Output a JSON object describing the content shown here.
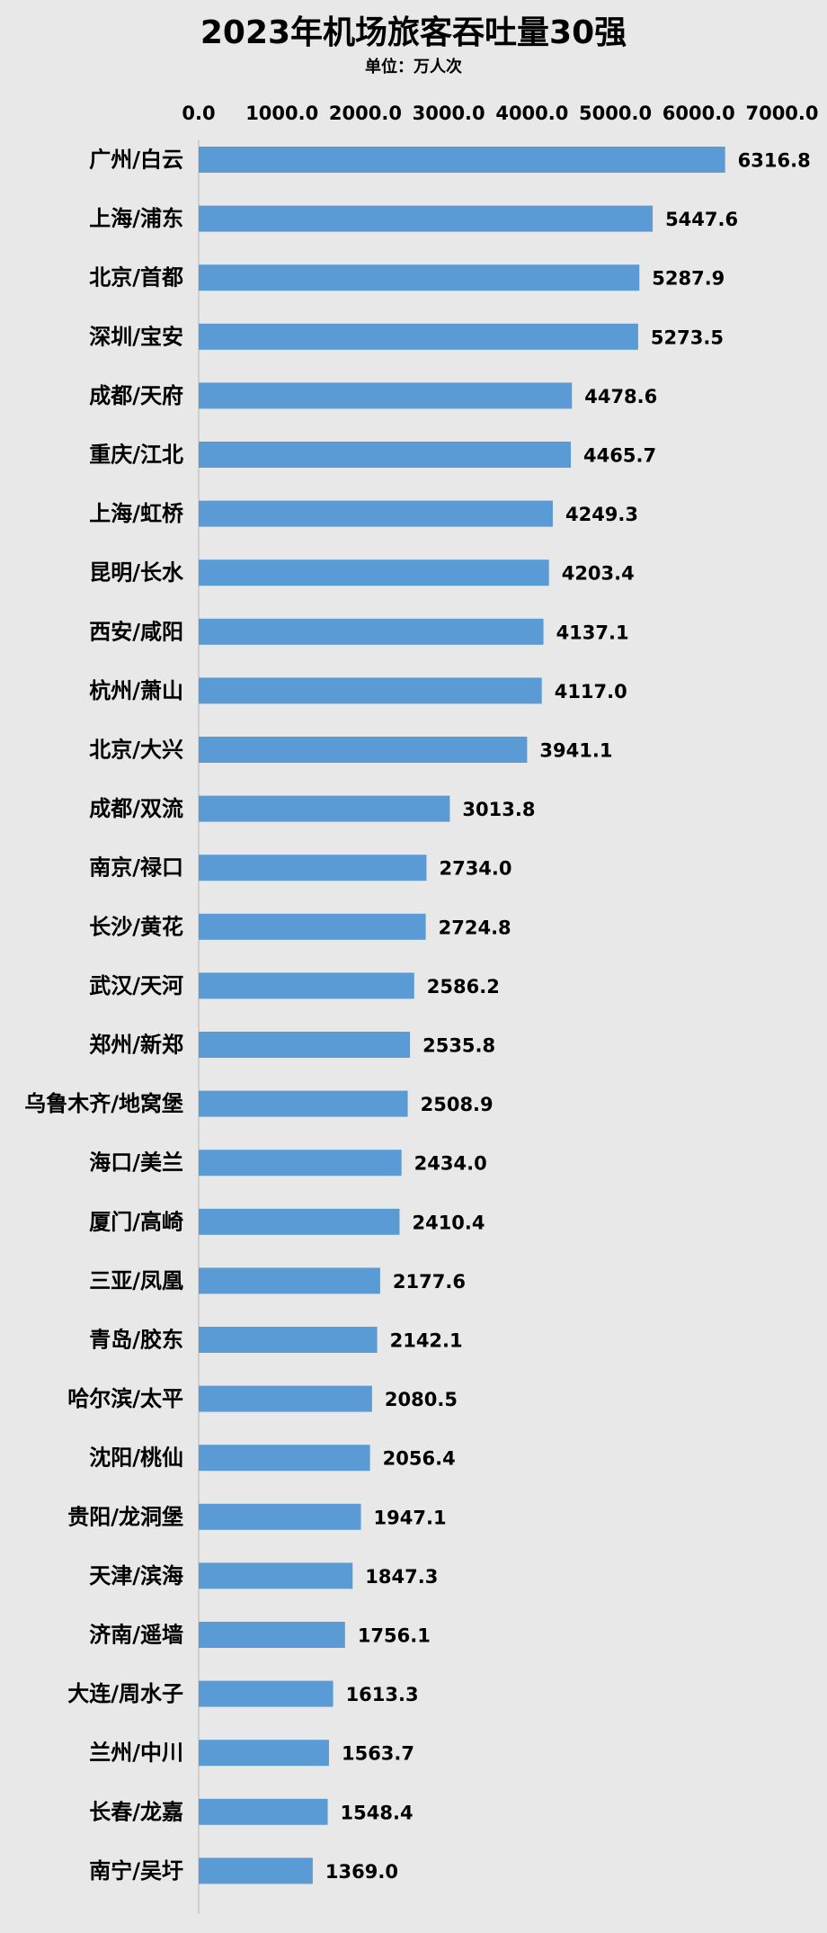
{
  "chart_data": {
    "type": "bar",
    "orientation": "horizontal",
    "title": "2023年机场旅客吞吐量30强",
    "subtitle": "单位：万人次",
    "xlim": [
      0,
      7000
    ],
    "xticks": [
      "0.0",
      "1000.0",
      "2000.0",
      "3000.0",
      "4000.0",
      "5000.0",
      "6000.0",
      "7000.0"
    ],
    "xaxis_position": "top",
    "grid": false,
    "bar_color": "#5b9bd5",
    "categories": [
      "广州/白云",
      "上海/浦东",
      "北京/首都",
      "深圳/宝安",
      "成都/天府",
      "重庆/江北",
      "上海/虹桥",
      "昆明/长水",
      "西安/咸阳",
      "杭州/萧山",
      "北京/大兴",
      "成都/双流",
      "南京/禄口",
      "长沙/黄花",
      "武汉/天河",
      "郑州/新郑",
      "乌鲁木齐/地窝堡",
      "海口/美兰",
      "厦门/高崎",
      "三亚/凤凰",
      "青岛/胶东",
      "哈尔滨/太平",
      "沈阳/桃仙",
      "贵阳/龙洞堡",
      "天津/滨海",
      "济南/遥墙",
      "大连/周水子",
      "兰州/中川",
      "长春/龙嘉",
      "南宁/吴圩"
    ],
    "values": [
      6316.8,
      5447.6,
      5287.9,
      5273.5,
      4478.6,
      4465.7,
      4249.3,
      4203.4,
      4137.1,
      4117.0,
      3941.1,
      3013.8,
      2734.0,
      2724.8,
      2586.2,
      2535.8,
      2508.9,
      2434.0,
      2410.4,
      2177.6,
      2142.1,
      2080.5,
      2056.4,
      1947.1,
      1847.3,
      1756.1,
      1613.3,
      1563.7,
      1548.4,
      1369.0
    ],
    "data_labels": [
      "6316.8",
      "5447.6",
      "5287.9",
      "5273.5",
      "4478.6",
      "4465.7",
      "4249.3",
      "4203.4",
      "4137.1",
      "4117.0",
      "3941.1",
      "3013.8",
      "2734.0",
      "2724.8",
      "2586.2",
      "2535.8",
      "2508.9",
      "2434.0",
      "2410.4",
      "2177.6",
      "2142.1",
      "2080.5",
      "2056.4",
      "1947.1",
      "1847.3",
      "1756.1",
      "1613.3",
      "1563.7",
      "1548.4",
      "1369.0"
    ]
  }
}
